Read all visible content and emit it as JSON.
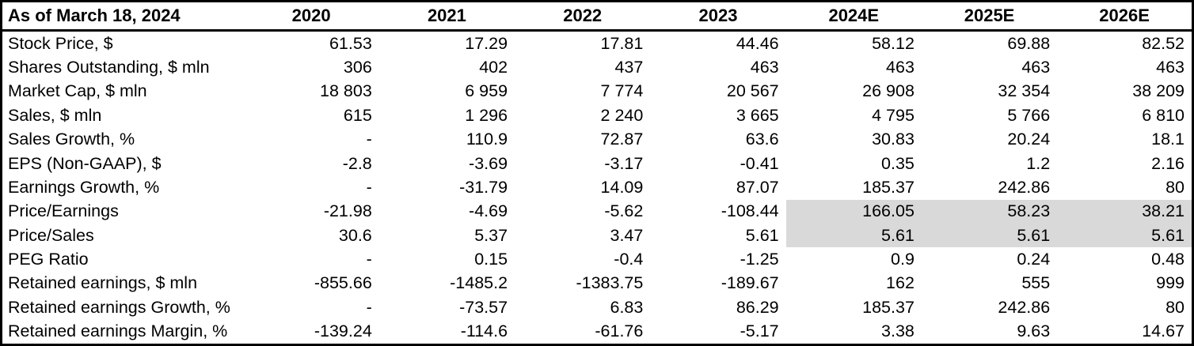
{
  "colors": {
    "background": "#ffffff",
    "text": "#000000",
    "border": "#000000",
    "highlight": "#d9d9d9"
  },
  "chart_data": {
    "type": "table",
    "title": "As of March 18, 2024",
    "columns": [
      "2020",
      "2021",
      "2022",
      "2023",
      "2024E",
      "2025E",
      "2026E"
    ],
    "highlight_note": "Price/Earnings and Price/Sales cells for forecast columns 2024E-2026E have gray background",
    "rows": [
      {
        "label": "Stock Price, $",
        "values": [
          "61.53",
          "17.29",
          "17.81",
          "44.46",
          "58.12",
          "69.88",
          "82.52"
        ],
        "highlight_cols": []
      },
      {
        "label": "Shares Outstanding, $ mln",
        "values": [
          "306",
          "402",
          "437",
          "463",
          "463",
          "463",
          "463"
        ],
        "highlight_cols": []
      },
      {
        "label": "Market Cap, $ mln",
        "values": [
          "18 803",
          "6 959",
          "7 774",
          "20 567",
          "26 908",
          "32 354",
          "38 209"
        ],
        "highlight_cols": []
      },
      {
        "label": "Sales, $ mln",
        "values": [
          "615",
          "1 296",
          "2 240",
          "3 665",
          "4 795",
          "5 766",
          "6 810"
        ],
        "highlight_cols": []
      },
      {
        "label": "Sales Growth, %",
        "values": [
          "-",
          "110.9",
          "72.87",
          "63.6",
          "30.83",
          "20.24",
          "18.1"
        ],
        "highlight_cols": []
      },
      {
        "label": "EPS (Non-GAAP), $",
        "values": [
          "-2.8",
          "-3.69",
          "-3.17",
          "-0.41",
          "0.35",
          "1.2",
          "2.16"
        ],
        "highlight_cols": []
      },
      {
        "label": "Earnings Growth, %",
        "values": [
          "-",
          "-31.79",
          "14.09",
          "87.07",
          "185.37",
          "242.86",
          "80"
        ],
        "highlight_cols": []
      },
      {
        "label": "Price/Earnings",
        "values": [
          "-21.98",
          "-4.69",
          "-5.62",
          "-108.44",
          "166.05",
          "58.23",
          "38.21"
        ],
        "highlight_cols": [
          4,
          5,
          6
        ]
      },
      {
        "label": "Price/Sales",
        "values": [
          "30.6",
          "5.37",
          "3.47",
          "5.61",
          "5.61",
          "5.61",
          "5.61"
        ],
        "highlight_cols": [
          4,
          5,
          6
        ]
      },
      {
        "label": "PEG Ratio",
        "values": [
          "-",
          "0.15",
          "-0.4",
          "-1.25",
          "0.9",
          "0.24",
          "0.48"
        ],
        "highlight_cols": []
      },
      {
        "label": "Retained earnings, $ mln",
        "values": [
          "-855.66",
          "-1485.2",
          "-1383.75",
          "-189.67",
          "162",
          "555",
          "999"
        ],
        "highlight_cols": []
      },
      {
        "label": "Retained earnings Growth, %",
        "values": [
          "-",
          "-73.57",
          "6.83",
          "86.29",
          "185.37",
          "242.86",
          "80"
        ],
        "highlight_cols": []
      },
      {
        "label": "Retained earnings Margin, %",
        "values": [
          "-139.24",
          "-114.6",
          "-61.76",
          "-5.17",
          "3.38",
          "9.63",
          "14.67"
        ],
        "highlight_cols": []
      }
    ]
  }
}
